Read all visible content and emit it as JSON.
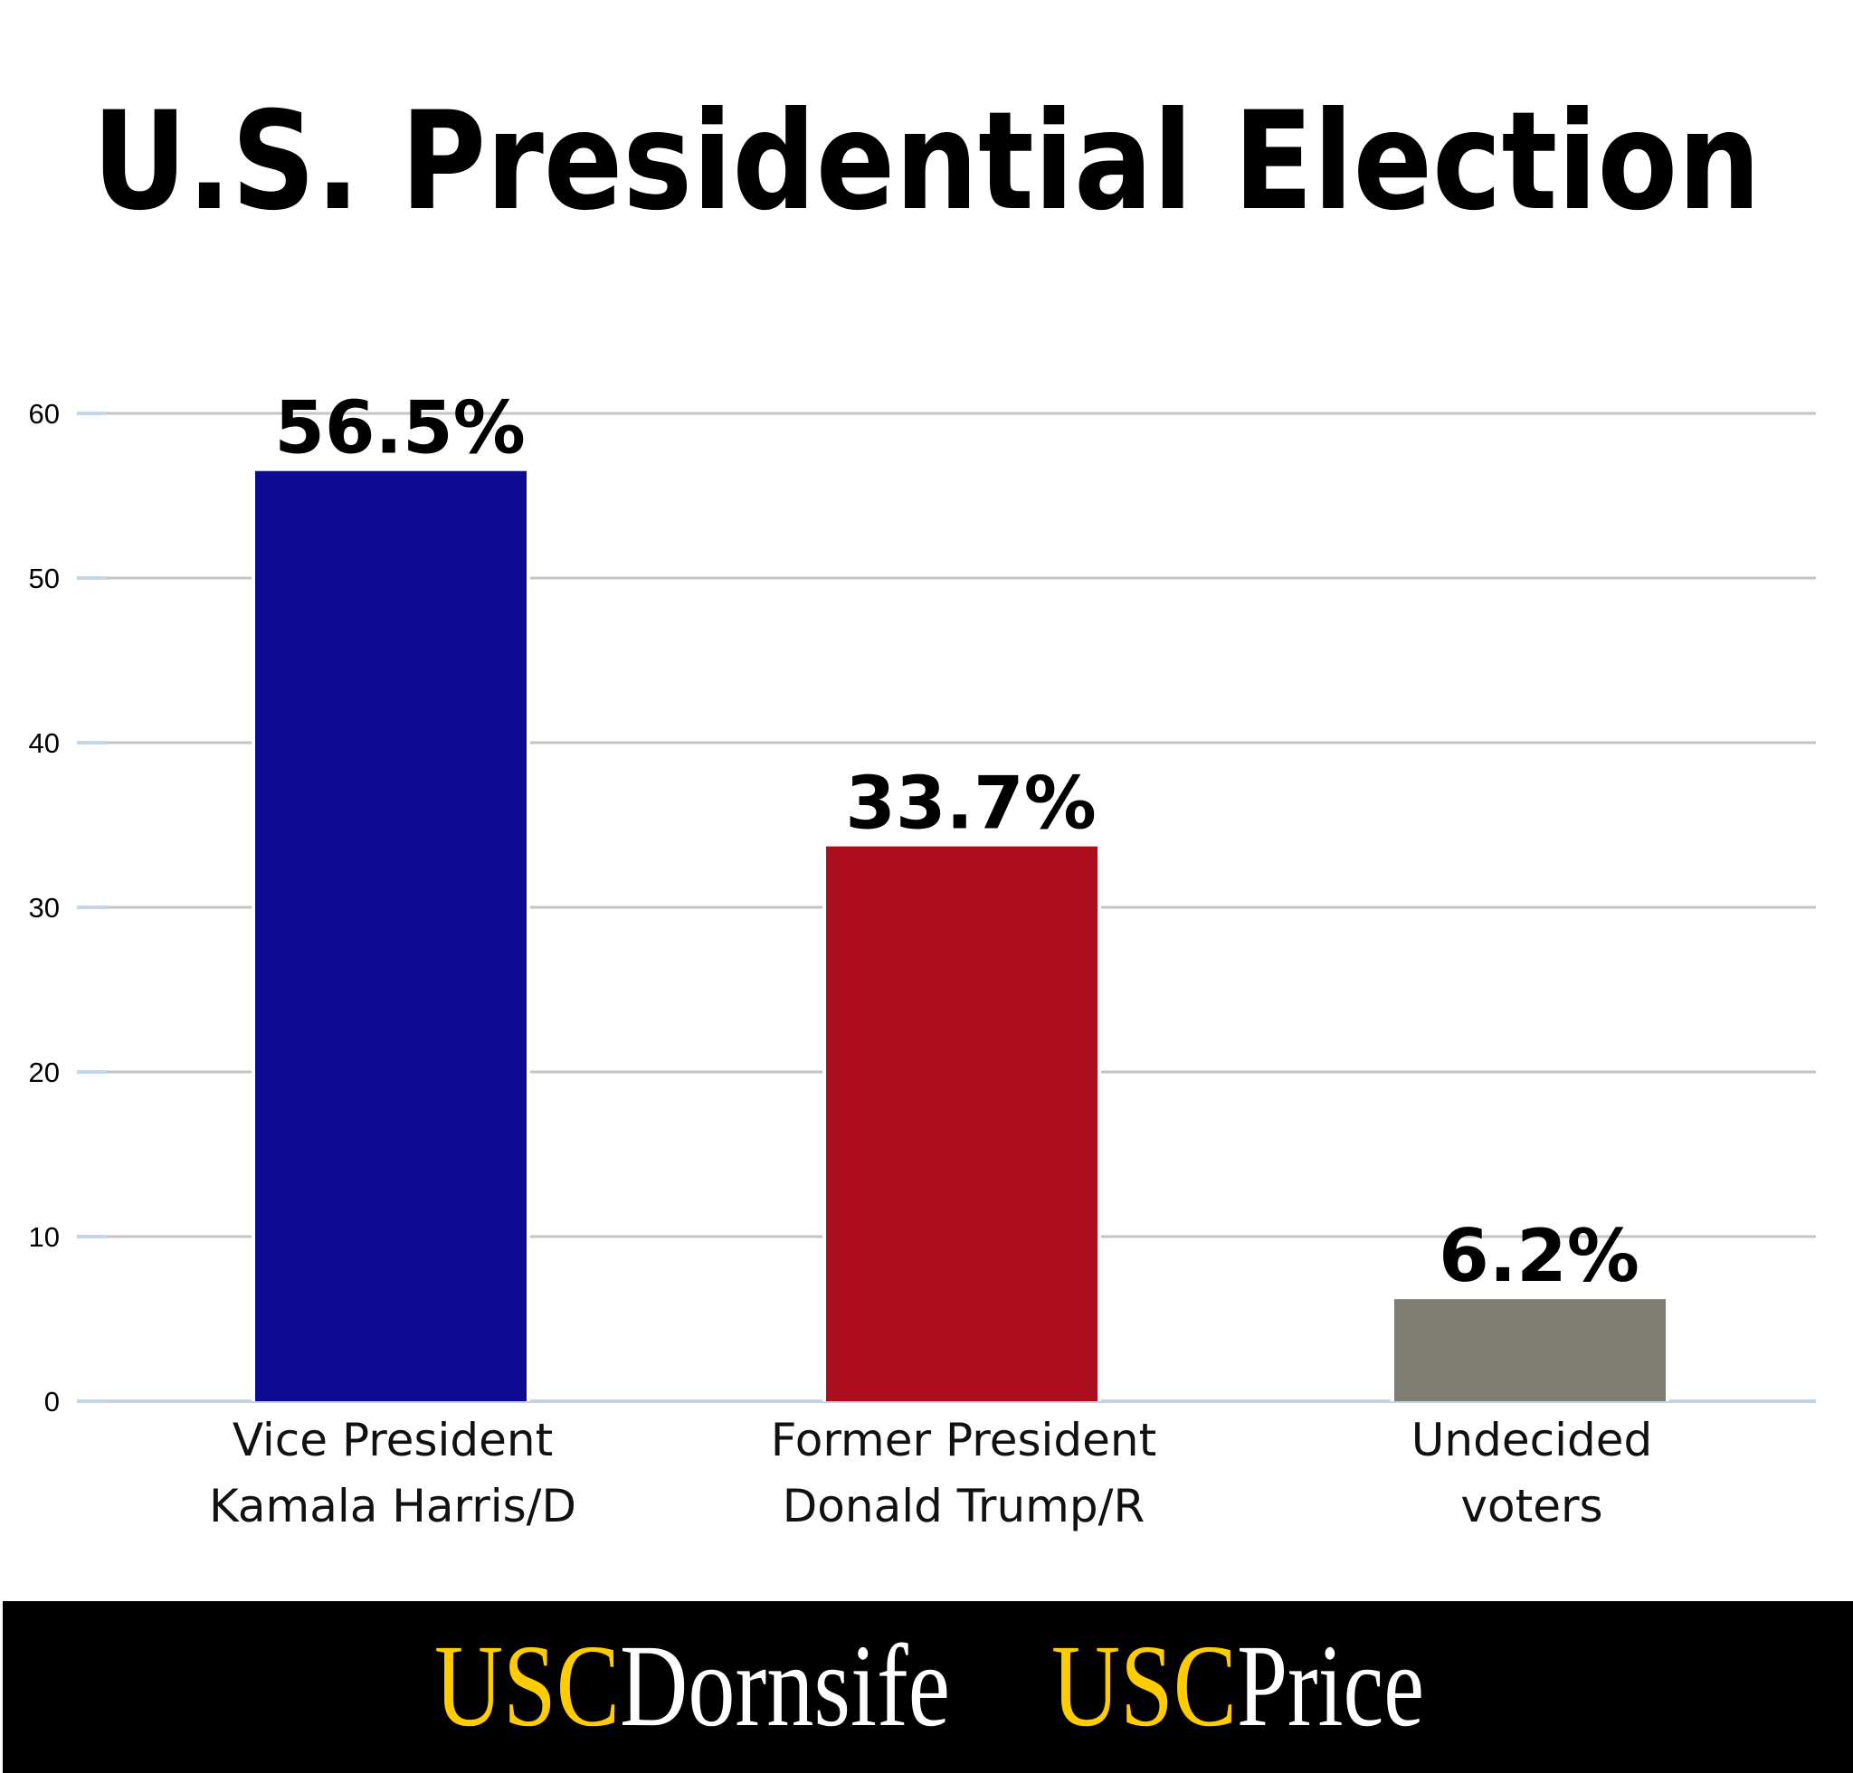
{
  "chart_data": {
    "type": "bar",
    "title": "U.S. Presidential Election",
    "categories": [
      [
        "Vice President",
        "Kamala Harris/D"
      ],
      [
        "Former President",
        "Donald Trump/R"
      ],
      [
        "Undecided",
        "voters"
      ]
    ],
    "values": [
      56.5,
      33.7,
      6.2
    ],
    "data_labels": [
      "56.5%",
      "33.7%",
      "6.2%"
    ],
    "colors": [
      "#0e0a91",
      "#ad0e1e",
      "#7d7d74"
    ],
    "ylim": [
      0,
      60
    ],
    "yticks": [
      0,
      10,
      20,
      30,
      40,
      50,
      60
    ],
    "grid": true,
    "xlabel": "",
    "ylabel": ""
  },
  "footer": {
    "logos": [
      {
        "prefix": "USC",
        "name": "Dornsife"
      },
      {
        "prefix": "USC",
        "name": "Price"
      }
    ],
    "prefix_color": "#ffcc00",
    "name_color": "#ffffff",
    "background": "#000000"
  }
}
